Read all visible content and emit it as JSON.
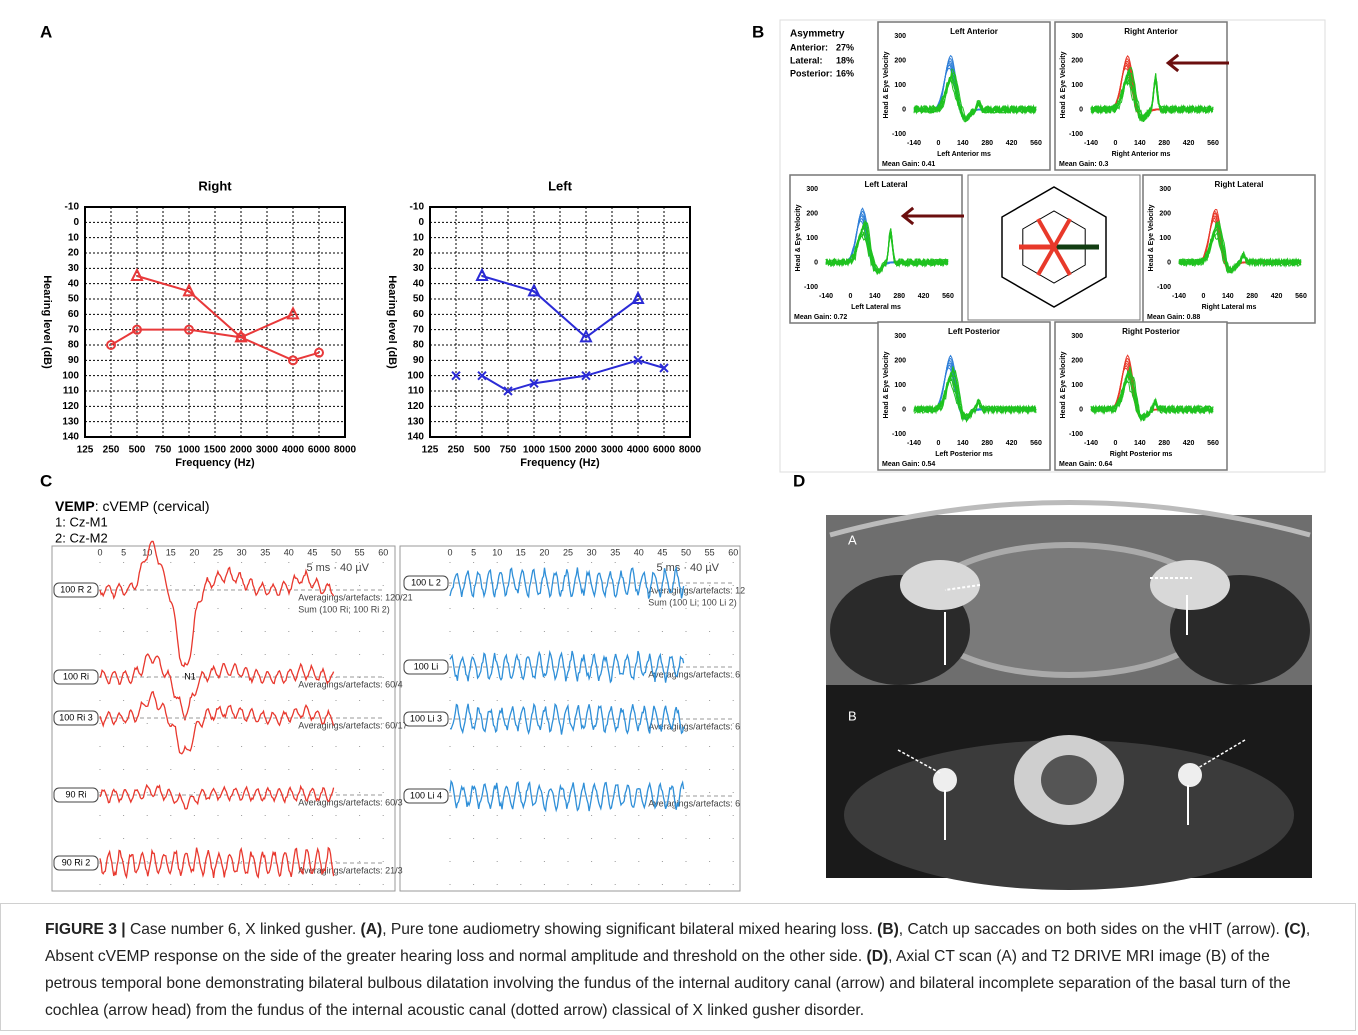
{
  "chart_data": [
    {
      "type": "line",
      "title": "Right",
      "x_label": "Frequency (Hz)",
      "y_label": "Hearing level (dB)",
      "y_inverted": true,
      "grid": true,
      "categories": [
        "125",
        "250",
        "500",
        "750",
        "1000",
        "1500",
        "2000",
        "3000",
        "4000",
        "6000",
        "8000"
      ],
      "ylim": [
        -10,
        140
      ],
      "yticks": [
        -10,
        0,
        10,
        20,
        30,
        40,
        50,
        60,
        70,
        80,
        90,
        100,
        110,
        120,
        130,
        140
      ],
      "series": [
        {
          "color": "#e8393a",
          "marker": "triangle",
          "x": [
            "500",
            "1000",
            "2000",
            "4000"
          ],
          "values": [
            35,
            45,
            75,
            60
          ]
        },
        {
          "color": "#e8393a",
          "marker": "circle",
          "x": [
            "250",
            "500",
            "1000",
            "2000",
            "4000",
            "6000"
          ],
          "values": [
            80,
            70,
            70,
            75,
            90,
            85
          ]
        }
      ]
    },
    {
      "type": "line",
      "title": "Left",
      "x_label": "Frequency (Hz)",
      "y_label": "Hearing level (dB)",
      "y_inverted": true,
      "grid": true,
      "categories": [
        "125",
        "250",
        "500",
        "750",
        "1000",
        "1500",
        "2000",
        "3000",
        "4000",
        "6000",
        "8000"
      ],
      "ylim": [
        -10,
        140
      ],
      "yticks": [
        -10,
        0,
        10,
        20,
        30,
        40,
        50,
        60,
        70,
        80,
        90,
        100,
        110,
        120,
        130,
        140
      ],
      "series": [
        {
          "color": "#2b2bd6",
          "marker": "triangle",
          "x": [
            "500",
            "1000",
            "2000",
            "4000"
          ],
          "values": [
            35,
            45,
            75,
            50
          ]
        },
        {
          "color": "#2b2bd6",
          "marker": "cross",
          "x": [
            "500",
            "750",
            "1000",
            "2000",
            "4000",
            "6000"
          ],
          "values": [
            100,
            110,
            105,
            100,
            90,
            95
          ]
        },
        {
          "color": "#2b2bd6",
          "marker": "cross",
          "x": [
            "250"
          ],
          "values": [
            100
          ]
        }
      ]
    }
  ],
  "panel_a": {
    "label": "A"
  },
  "vhit": {
    "label": "B",
    "asymmetry_title": "Asymmetry",
    "asymmetry": [
      [
        "Anterior:",
        "27%"
      ],
      [
        "Lateral:",
        "18%"
      ],
      [
        "Posterior:",
        "16%"
      ]
    ],
    "y_label": "Head & Eye Velocity",
    "yticks": [
      300,
      200,
      100,
      0,
      -100
    ],
    "xticks": [
      -140,
      0,
      140,
      280,
      420,
      560
    ],
    "plots": [
      {
        "title": "Left Anterior",
        "x_label": "Left Anterior ms",
        "gain": "Mean Gain: 0.41",
        "color": "#2f7fd8",
        "arrow": false
      },
      {
        "title": "Right Anterior",
        "x_label": "Right Anterior ms",
        "gain": "Mean Gain: 0.3",
        "color": "#e8392a",
        "arrow": true
      },
      {
        "title": "Left Lateral",
        "x_label": "Left Lateral ms",
        "gain": "Mean Gain: 0.72",
        "color": "#2f7fd8",
        "arrow": true
      },
      {
        "title": "Right Lateral",
        "x_label": "Right Lateral ms",
        "gain": "Mean Gain: 0.88",
        "color": "#e8392a",
        "arrow": false
      },
      {
        "title": "Left Posterior",
        "x_label": "Left Posterior ms",
        "gain": "Mean Gain: 0.54",
        "color": "#2f7fd8",
        "arrow": false
      },
      {
        "title": "Right Posterior",
        "x_label": "Right Posterior ms",
        "gain": "Mean Gain: 0.64",
        "color": "#e8392a",
        "arrow": false
      }
    ]
  },
  "vemp": {
    "label": "C",
    "title_bold": "VEMP",
    "title_rest": ": cVEMP (cervical)",
    "lines": [
      "1: Cz-M1",
      "2: Cz-M2"
    ],
    "xticks": [
      0,
      5,
      10,
      15,
      20,
      25,
      30,
      35,
      40,
      45,
      50,
      55,
      60
    ],
    "scale": "5 ms · 40 µV",
    "peak": "N1",
    "left": [
      {
        "label": "100 R 2",
        "info": "Averagings/artefacts: 120/21",
        "sum": "Sum (100 Ri; 100 Ri 2)"
      },
      {
        "label": "100 Ri",
        "info": "Averagings/artefacts: 60/4"
      },
      {
        "label": "100 Ri 3",
        "info": "Averagings/artefacts: 60/17"
      },
      {
        "label": "90 Ri",
        "info": "Averagings/artefacts: 60/3"
      },
      {
        "label": "90 Ri 2",
        "info": "Averagings/artefacts: 21/3"
      }
    ],
    "right": [
      {
        "label": "100 L 2",
        "info": "Averagings/artefacts: 12",
        "sum": "Sum (100 Li; 100 Li 2)"
      },
      {
        "label": "100 Li",
        "info": "Averagings/artefacts: 6"
      },
      {
        "label": "100 Li 3",
        "info": "Averagings/artefacts: 6"
      },
      {
        "label": "100 Li 4",
        "info": "Averagings/artefacts: 6"
      }
    ]
  },
  "imaging": {
    "label": "D",
    "top_label": "A",
    "bottom_label": "B"
  },
  "caption": {
    "segments": [
      {
        "text": "FIGURE 3 | ",
        "bold": true
      },
      {
        "text": "Case number 6, X linked gusher. ",
        "bold": false
      },
      {
        "text": "(A)",
        "bold": true
      },
      {
        "text": ", Pure tone audiometry showing significant bilateral mixed hearing loss. ",
        "bold": false
      },
      {
        "text": "(B)",
        "bold": true
      },
      {
        "text": ", Catch up saccades on both sides on the vHIT (arrow). ",
        "bold": false
      },
      {
        "text": "(C)",
        "bold": true
      },
      {
        "text": ", Absent cVEMP response on the side of the greater hearing loss and normal amplitude and threshold on the other side. ",
        "bold": false
      },
      {
        "text": "(D)",
        "bold": true
      },
      {
        "text": ", Axial CT scan (A) and T2 DRIVE MRI image (B) of the petrous temporal bone demonstrating bilateral bulbous dilatation involving the fundus of the internal auditory canal (arrow) and bilateral incomplete separation of the basal turn of the cochlea (arrow head) from the fundus of the internal acoustic canal (dotted arrow) classical of X linked gusher disorder.",
        "bold": false
      }
    ]
  }
}
